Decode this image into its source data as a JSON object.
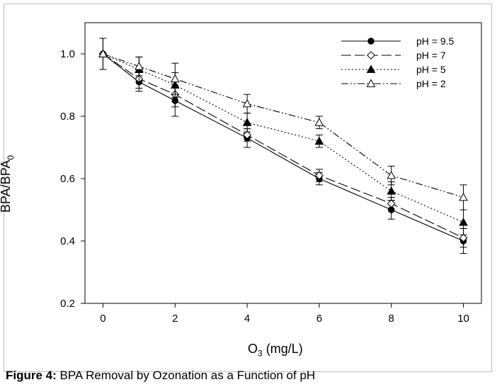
{
  "figure": {
    "caption_label": "Figure 4:",
    "caption_text": "BPA Removal by Ozonation as a Function of pH"
  },
  "chart_data": {
    "type": "line",
    "title": "",
    "xlabel_main": "O",
    "xlabel_sub": "3",
    "xlabel_rest": " (mg/L)",
    "ylabel_main": "BPA/BPA",
    "ylabel_sub": "0",
    "xlim": [
      -0.5,
      10.5
    ],
    "ylim": [
      0.2,
      1.1
    ],
    "xticks": [
      0,
      2,
      4,
      6,
      8,
      10
    ],
    "yticks": [
      0.2,
      0.4,
      0.6,
      0.8,
      1.0
    ],
    "ytick_labels": [
      "0.2",
      "0.4",
      "0.6",
      "0.8",
      "1.0"
    ],
    "legend_position": "top-right",
    "x": [
      0,
      1,
      2,
      4,
      6,
      8,
      10
    ],
    "series": [
      {
        "name": "pH = 9.5",
        "marker": "filled-circle",
        "line": "solid",
        "values": [
          1.0,
          0.91,
          0.85,
          0.73,
          0.6,
          0.5,
          0.4
        ],
        "errors": [
          0.05,
          0.03,
          0.05,
          0.03,
          0.02,
          0.03,
          0.04
        ]
      },
      {
        "name": "pH = 7",
        "marker": "open-diamond",
        "line": "long-dash",
        "values": [
          1.0,
          0.92,
          0.87,
          0.74,
          0.61,
          0.52,
          0.41
        ],
        "errors": [
          0.05,
          0.03,
          0.04,
          0.02,
          0.02,
          0.02,
          0.03
        ]
      },
      {
        "name": "pH = 5",
        "marker": "filled-triangle",
        "line": "dotted",
        "values": [
          1.0,
          0.95,
          0.9,
          0.78,
          0.72,
          0.56,
          0.46
        ],
        "errors": [
          0.05,
          0.04,
          0.04,
          0.03,
          0.02,
          0.03,
          0.04
        ]
      },
      {
        "name": "pH = 2",
        "marker": "open-triangle",
        "line": "dash-dot-dot",
        "values": [
          1.0,
          0.96,
          0.92,
          0.84,
          0.78,
          0.61,
          0.54
        ],
        "errors": [
          0.05,
          0.03,
          0.05,
          0.03,
          0.02,
          0.03,
          0.04
        ]
      }
    ]
  }
}
